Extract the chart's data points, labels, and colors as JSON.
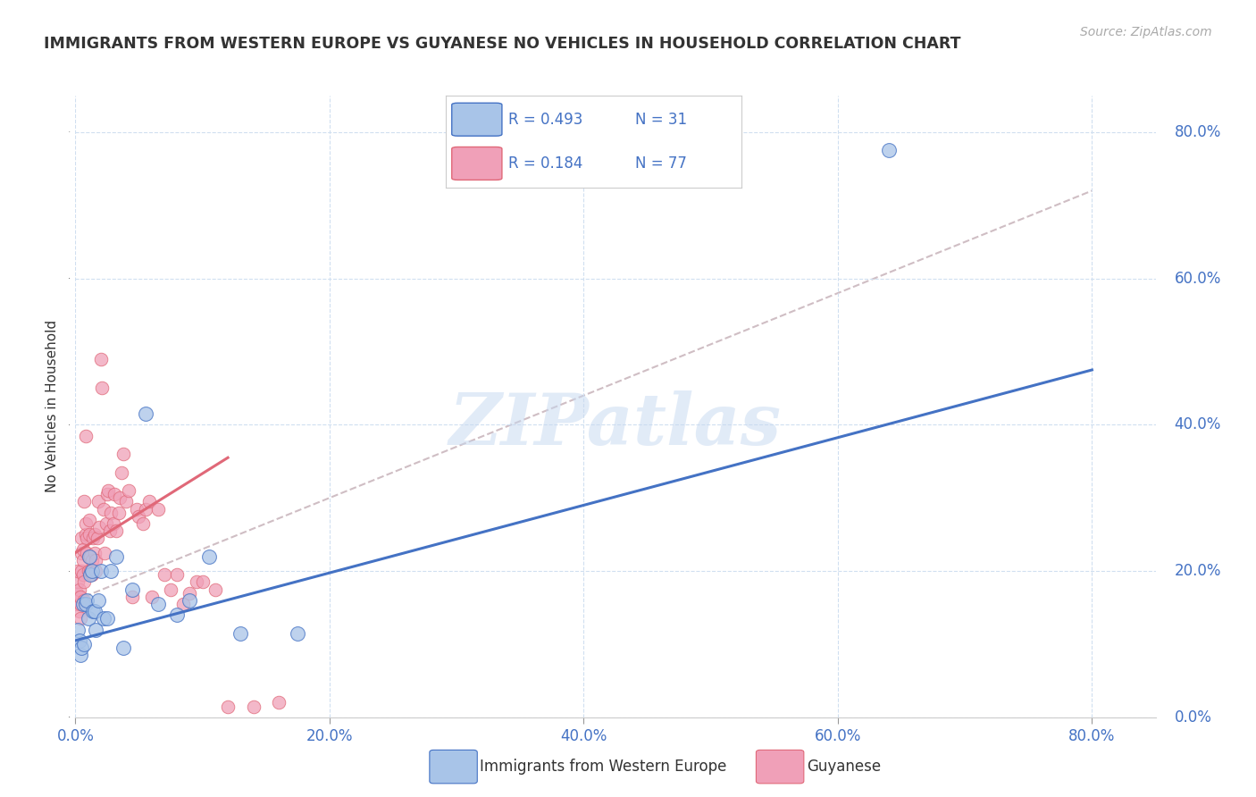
{
  "title": "IMMIGRANTS FROM WESTERN EUROPE VS GUYANESE NO VEHICLES IN HOUSEHOLD CORRELATION CHART",
  "source": "Source: ZipAtlas.com",
  "ylabel": "No Vehicles in Household",
  "ytick_values": [
    0.0,
    0.2,
    0.4,
    0.6,
    0.8
  ],
  "xtick_values": [
    0.0,
    0.2,
    0.4,
    0.6,
    0.8
  ],
  "xlim": [
    0.0,
    0.85
  ],
  "ylim": [
    0.0,
    0.85
  ],
  "legend_r_blue": "R = 0.493",
  "legend_n_blue": "N = 31",
  "legend_r_pink": "R = 0.184",
  "legend_n_pink": "N = 77",
  "legend_label_blue": "Immigrants from Western Europe",
  "legend_label_pink": "Guyanese",
  "color_blue": "#a8c4e8",
  "color_pink": "#f0a0b8",
  "color_line_blue": "#4472c4",
  "color_line_pink": "#e06878",
  "color_line_dashed": "#c0a8b0",
  "color_text_blue": "#4472c4",
  "color_text_dark": "#333333",
  "color_text_gray": "#aaaaaa",
  "color_grid": "#d0dff0",
  "blue_line_x0": 0.0,
  "blue_line_y0": 0.105,
  "blue_line_x1": 0.8,
  "blue_line_y1": 0.475,
  "pink_line_x0": 0.0,
  "pink_line_y0": 0.225,
  "pink_line_x1": 0.12,
  "pink_line_y1": 0.355,
  "dashed_line_x0": 0.0,
  "dashed_line_y0": 0.16,
  "dashed_line_x1": 0.8,
  "dashed_line_y1": 0.72,
  "blue_x": [
    0.002,
    0.003,
    0.004,
    0.005,
    0.006,
    0.007,
    0.008,
    0.009,
    0.01,
    0.011,
    0.012,
    0.013,
    0.014,
    0.015,
    0.016,
    0.018,
    0.02,
    0.022,
    0.025,
    0.028,
    0.032,
    0.038,
    0.045,
    0.055,
    0.065,
    0.08,
    0.09,
    0.105,
    0.13,
    0.175,
    0.64
  ],
  "blue_y": [
    0.12,
    0.105,
    0.085,
    0.095,
    0.155,
    0.1,
    0.155,
    0.16,
    0.135,
    0.22,
    0.195,
    0.2,
    0.145,
    0.145,
    0.12,
    0.16,
    0.2,
    0.135,
    0.135,
    0.2,
    0.22,
    0.095,
    0.175,
    0.415,
    0.155,
    0.14,
    0.16,
    0.22,
    0.115,
    0.115,
    0.775
  ],
  "pink_x": [
    0.001,
    0.001,
    0.002,
    0.002,
    0.003,
    0.003,
    0.003,
    0.004,
    0.004,
    0.004,
    0.005,
    0.005,
    0.005,
    0.006,
    0.006,
    0.006,
    0.007,
    0.007,
    0.007,
    0.008,
    0.008,
    0.008,
    0.009,
    0.009,
    0.01,
    0.01,
    0.011,
    0.011,
    0.012,
    0.012,
    0.013,
    0.013,
    0.014,
    0.015,
    0.015,
    0.016,
    0.016,
    0.017,
    0.018,
    0.019,
    0.02,
    0.021,
    0.022,
    0.023,
    0.024,
    0.025,
    0.026,
    0.027,
    0.028,
    0.03,
    0.031,
    0.032,
    0.034,
    0.035,
    0.036,
    0.038,
    0.04,
    0.042,
    0.045,
    0.048,
    0.05,
    0.053,
    0.055,
    0.058,
    0.06,
    0.065,
    0.07,
    0.075,
    0.08,
    0.085,
    0.09,
    0.095,
    0.1,
    0.11,
    0.12,
    0.14,
    0.16
  ],
  "pink_y": [
    0.155,
    0.17,
    0.185,
    0.2,
    0.145,
    0.165,
    0.175,
    0.135,
    0.155,
    0.165,
    0.2,
    0.225,
    0.245,
    0.195,
    0.215,
    0.23,
    0.16,
    0.185,
    0.295,
    0.25,
    0.265,
    0.385,
    0.225,
    0.245,
    0.2,
    0.22,
    0.25,
    0.27,
    0.2,
    0.22,
    0.195,
    0.215,
    0.245,
    0.225,
    0.25,
    0.2,
    0.215,
    0.245,
    0.295,
    0.26,
    0.49,
    0.45,
    0.285,
    0.225,
    0.265,
    0.305,
    0.31,
    0.255,
    0.28,
    0.265,
    0.305,
    0.255,
    0.28,
    0.3,
    0.335,
    0.36,
    0.295,
    0.31,
    0.165,
    0.285,
    0.275,
    0.265,
    0.285,
    0.295,
    0.165,
    0.285,
    0.195,
    0.175,
    0.195,
    0.155,
    0.17,
    0.185,
    0.185,
    0.175,
    0.015,
    0.015,
    0.02
  ]
}
